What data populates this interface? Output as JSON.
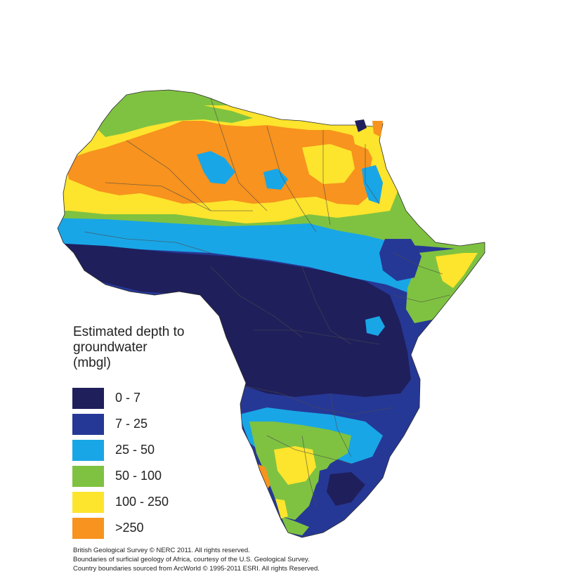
{
  "legend": {
    "title_lines": [
      "Estimated depth to",
      "groundwater",
      "(mbgl)"
    ],
    "items": [
      {
        "label": "0 - 7",
        "color": "#1f1f5c"
      },
      {
        "label": "7 - 25",
        "color": "#263896"
      },
      {
        "label": "25 - 50",
        "color": "#19a6e6"
      },
      {
        "label": "50 - 100",
        "color": "#7fc241"
      },
      {
        "label": "100 - 250",
        "color": "#fde42d"
      },
      {
        "label": ">250",
        "color": "#f7931e"
      }
    ]
  },
  "credits": [
    "British Geological Survey © NERC 2011.  All rights reserved.",
    "Boundaries of surficial geology of Africa, courtesy of the U.S. Geological Survey.",
    "Country boundaries sourced from ArcWorld © 1995-2011 ESRI.  All rights Reserved."
  ]
}
